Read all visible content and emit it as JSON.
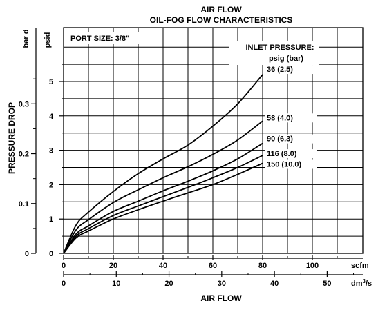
{
  "chart_data": {
    "type": "line",
    "title": "AIR FLOW",
    "subtitle": "OIL-FOG FLOW CHARACTERISTICS",
    "annotation": "PORT SIZE: 3/8\"",
    "legend": {
      "title": "INLET PRESSURE:",
      "subtitle": "psig (bar)",
      "placement": "right, at curve ends"
    },
    "ylabel": "PRESSURE DROP",
    "xlabel": "AIR FLOW",
    "x_axis_primary": {
      "unit": "scfm",
      "range": [
        0,
        130
      ],
      "ticks": [
        0,
        20,
        40,
        60,
        80,
        100
      ],
      "tick_labels": [
        "0",
        "20",
        "40",
        "60",
        "80",
        "100"
      ]
    },
    "x_axis_secondary": {
      "unit": "dm³/s",
      "unit_base": "dm",
      "unit_sup": "3",
      "unit_tail": "/s",
      "tick_labels": [
        "0",
        "10",
        "20",
        "30",
        "40",
        "50"
      ]
    },
    "y_axis_psid": {
      "unit": "psid",
      "range": [
        0,
        6
      ],
      "ticks": [
        0,
        1,
        2,
        3,
        4,
        5
      ],
      "tick_labels": [
        "0",
        "1",
        "2",
        "3",
        "4",
        "5"
      ]
    },
    "y_axis_bar": {
      "unit": "bar d",
      "tick_labels": [
        "0",
        "0.1",
        "0.2",
        "0.3"
      ]
    },
    "grid": true,
    "x": [
      0,
      5,
      10,
      20,
      30,
      40,
      50,
      60,
      70,
      80
    ],
    "series": [
      {
        "label": "36 (2.5)",
        "values": [
          0,
          0.82,
          1.2,
          1.8,
          2.32,
          2.75,
          3.15,
          3.7,
          4.35,
          5.2
        ]
      },
      {
        "label": "58 (4.0)",
        "values": [
          0,
          0.68,
          0.98,
          1.48,
          1.85,
          2.2,
          2.52,
          2.88,
          3.3,
          3.85
        ]
      },
      {
        "label": "90 (6.3)",
        "values": [
          0,
          0.56,
          0.8,
          1.22,
          1.52,
          1.82,
          2.1,
          2.4,
          2.75,
          3.2
        ]
      },
      {
        "label": "116 (8.0)",
        "values": [
          0,
          0.5,
          0.72,
          1.1,
          1.38,
          1.65,
          1.92,
          2.2,
          2.5,
          2.85
        ]
      },
      {
        "label": "150 (10.0)",
        "values": [
          0,
          0.45,
          0.65,
          1.0,
          1.27,
          1.52,
          1.76,
          2.0,
          2.3,
          2.62
        ]
      }
    ]
  }
}
